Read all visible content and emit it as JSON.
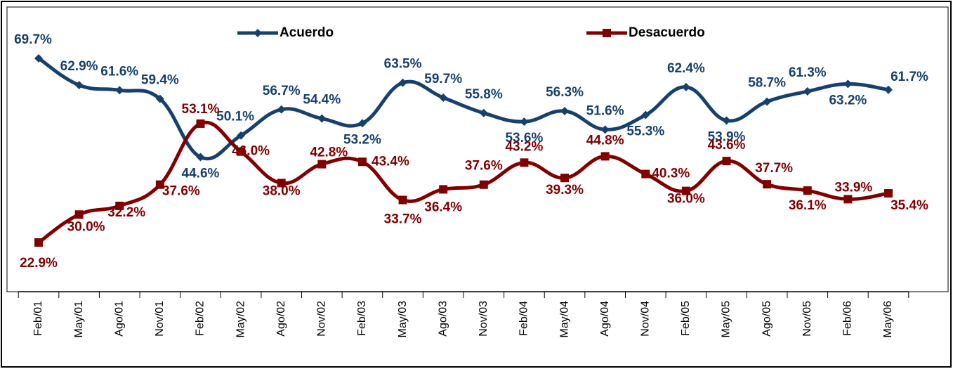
{
  "chart_data": {
    "type": "line",
    "categories": [
      "Feb/01",
      "May/01",
      "Ago/01",
      "Nov/01",
      "Feb/02",
      "May/02",
      "Ago/02",
      "Nov/02",
      "Feb/03",
      "May/03",
      "Ago/03",
      "Nov/03",
      "Feb/04",
      "May/04",
      "Ago/04",
      "Nov/04",
      "Feb/05",
      "May/05",
      "Ago/05",
      "Nov/05",
      "Feb/06",
      "May/06"
    ],
    "legend": "top",
    "series": [
      {
        "name": "Acuerdo",
        "color": "#17406d",
        "marker": "diamond",
        "values": [
          69.7,
          62.9,
          61.6,
          59.4,
          44.6,
          50.1,
          56.7,
          54.4,
          53.2,
          63.5,
          59.7,
          55.8,
          53.6,
          56.3,
          51.6,
          55.3,
          62.4,
          53.9,
          58.7,
          61.3,
          63.2,
          61.7
        ],
        "value_labels": [
          "69.7%",
          "62.9%",
          "61.6%",
          "59.4%",
          "44.6%",
          "50.1%",
          "56.7%",
          "54.4%",
          "53.2%",
          "63.5%",
          "59.7%",
          "55.8%",
          "53.6%",
          "56.3%",
          "51.6%",
          "55.3%",
          "62.4%",
          "53.9%",
          "58.7%",
          "61.3%",
          "63.2%",
          "61.7%"
        ]
      },
      {
        "name": "Desacuerdo",
        "color": "#800000",
        "marker": "square",
        "values": [
          22.9,
          30.0,
          32.2,
          37.6,
          53.1,
          46.0,
          38.0,
          42.8,
          43.4,
          33.7,
          36.4,
          37.6,
          43.2,
          39.3,
          44.8,
          40.3,
          36.0,
          43.6,
          37.7,
          36.1,
          33.9,
          35.4
        ],
        "value_labels": [
          "22.9%",
          "30.0%",
          "32.2%",
          "37.6%",
          "53.1%",
          "46.0%",
          "38.0%",
          "42.8%",
          "43.4%",
          "33.7%",
          "36.4%",
          "37.6%",
          "43.2%",
          "39.3%",
          "44.8%",
          "40.3%",
          "36.0%",
          "43.6%",
          "37.7%",
          "36.1%",
          "33.9%",
          "35.4%"
        ]
      }
    ]
  }
}
